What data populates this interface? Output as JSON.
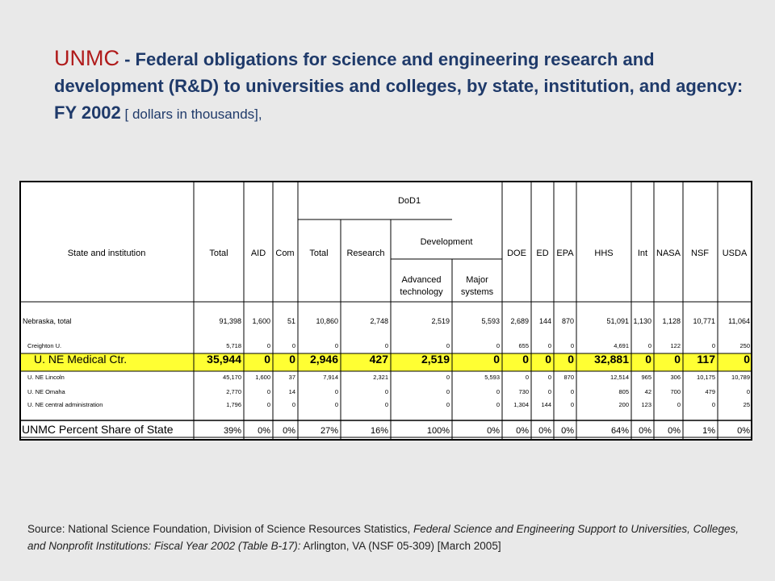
{
  "title": {
    "unmc": "UNMC",
    "main": " - Federal obligations for science and engineering research and development (R&D) to universities and colleges, by state, institution, and agency: FY 2002",
    "units": " [ dollars in thousands],"
  },
  "table": {
    "headers": {
      "state": "State and institution",
      "total": "Total",
      "aid": "AID",
      "com": "Com",
      "dod": "DoD1",
      "dod_total": "Total",
      "research": "Research",
      "development": "Development",
      "adv1": "Advanced",
      "adv2": "technology",
      "maj1": "Major",
      "maj2": "systems",
      "doe": "DOE",
      "ed": "ED",
      "epa": "EPA",
      "hhs": "HHS",
      "int": "Int",
      "nasa": "NASA",
      "nsf": "NSF",
      "usda": "USDA"
    },
    "rows": [
      {
        "name": "Nebraska, total",
        "kind": "state",
        "cells": [
          "91,398",
          "1,600",
          "51",
          "10,860",
          "2,748",
          "2,519",
          "5,593",
          "2,689",
          "144",
          "870",
          "51,091",
          "1,130",
          "1,128",
          "10,771",
          "11,064"
        ]
      },
      {
        "name": "Creighton U.",
        "kind": "small",
        "cells": [
          "5,718",
          "0",
          "0",
          "0",
          "0",
          "0",
          "0",
          "655",
          "0",
          "0",
          "4,691",
          "0",
          "122",
          "0",
          "250"
        ]
      },
      {
        "name": "U. NE Medical Ctr.",
        "kind": "highlight",
        "cells": [
          "35,944",
          "0",
          "0",
          "2,946",
          "427",
          "2,519",
          "0",
          "0",
          "0",
          "0",
          "32,881",
          "0",
          "0",
          "117",
          "0"
        ]
      },
      {
        "name": "U. NE Lincoln",
        "kind": "small",
        "cells": [
          "45,170",
          "1,600",
          "37",
          "7,914",
          "2,321",
          "0",
          "5,593",
          "0",
          "0",
          "870",
          "12,514",
          "965",
          "306",
          "10,175",
          "10,789"
        ]
      },
      {
        "name": "U. NE Omaha",
        "kind": "small",
        "cells": [
          "2,770",
          "0",
          "14",
          "0",
          "0",
          "0",
          "0",
          "730",
          "0",
          "0",
          "805",
          "42",
          "700",
          "479",
          "0"
        ]
      },
      {
        "name": "U. NE central administration",
        "kind": "small",
        "cells": [
          "1,796",
          "0",
          "0",
          "0",
          "0",
          "0",
          "0",
          "1,304",
          "144",
          "0",
          "200",
          "123",
          "0",
          "0",
          "25"
        ]
      },
      {
        "name": "UNMC Percent Share of State",
        "kind": "percent",
        "cells": [
          "39%",
          "0%",
          "0%",
          "27%",
          "16%",
          "100%",
          "0%",
          "0%",
          "0%",
          "0%",
          "64%",
          "0%",
          "0%",
          "1%",
          "0%"
        ]
      }
    ]
  },
  "source": {
    "prefix": "Source:  National Science Foundation, Division of Science Resources Statistics, ",
    "italic": "Federal Science and Engineering Support to Universities, Colleges, and Nonprofit Institutions: Fiscal Year 2002 (Table B-17):",
    "suffix": "  Arlington, VA (NSF 05-309) [March 2005]"
  },
  "colors": {
    "highlight": "#ffff33",
    "title_accent": "#b01b1b",
    "title": "#1f3a6a"
  }
}
